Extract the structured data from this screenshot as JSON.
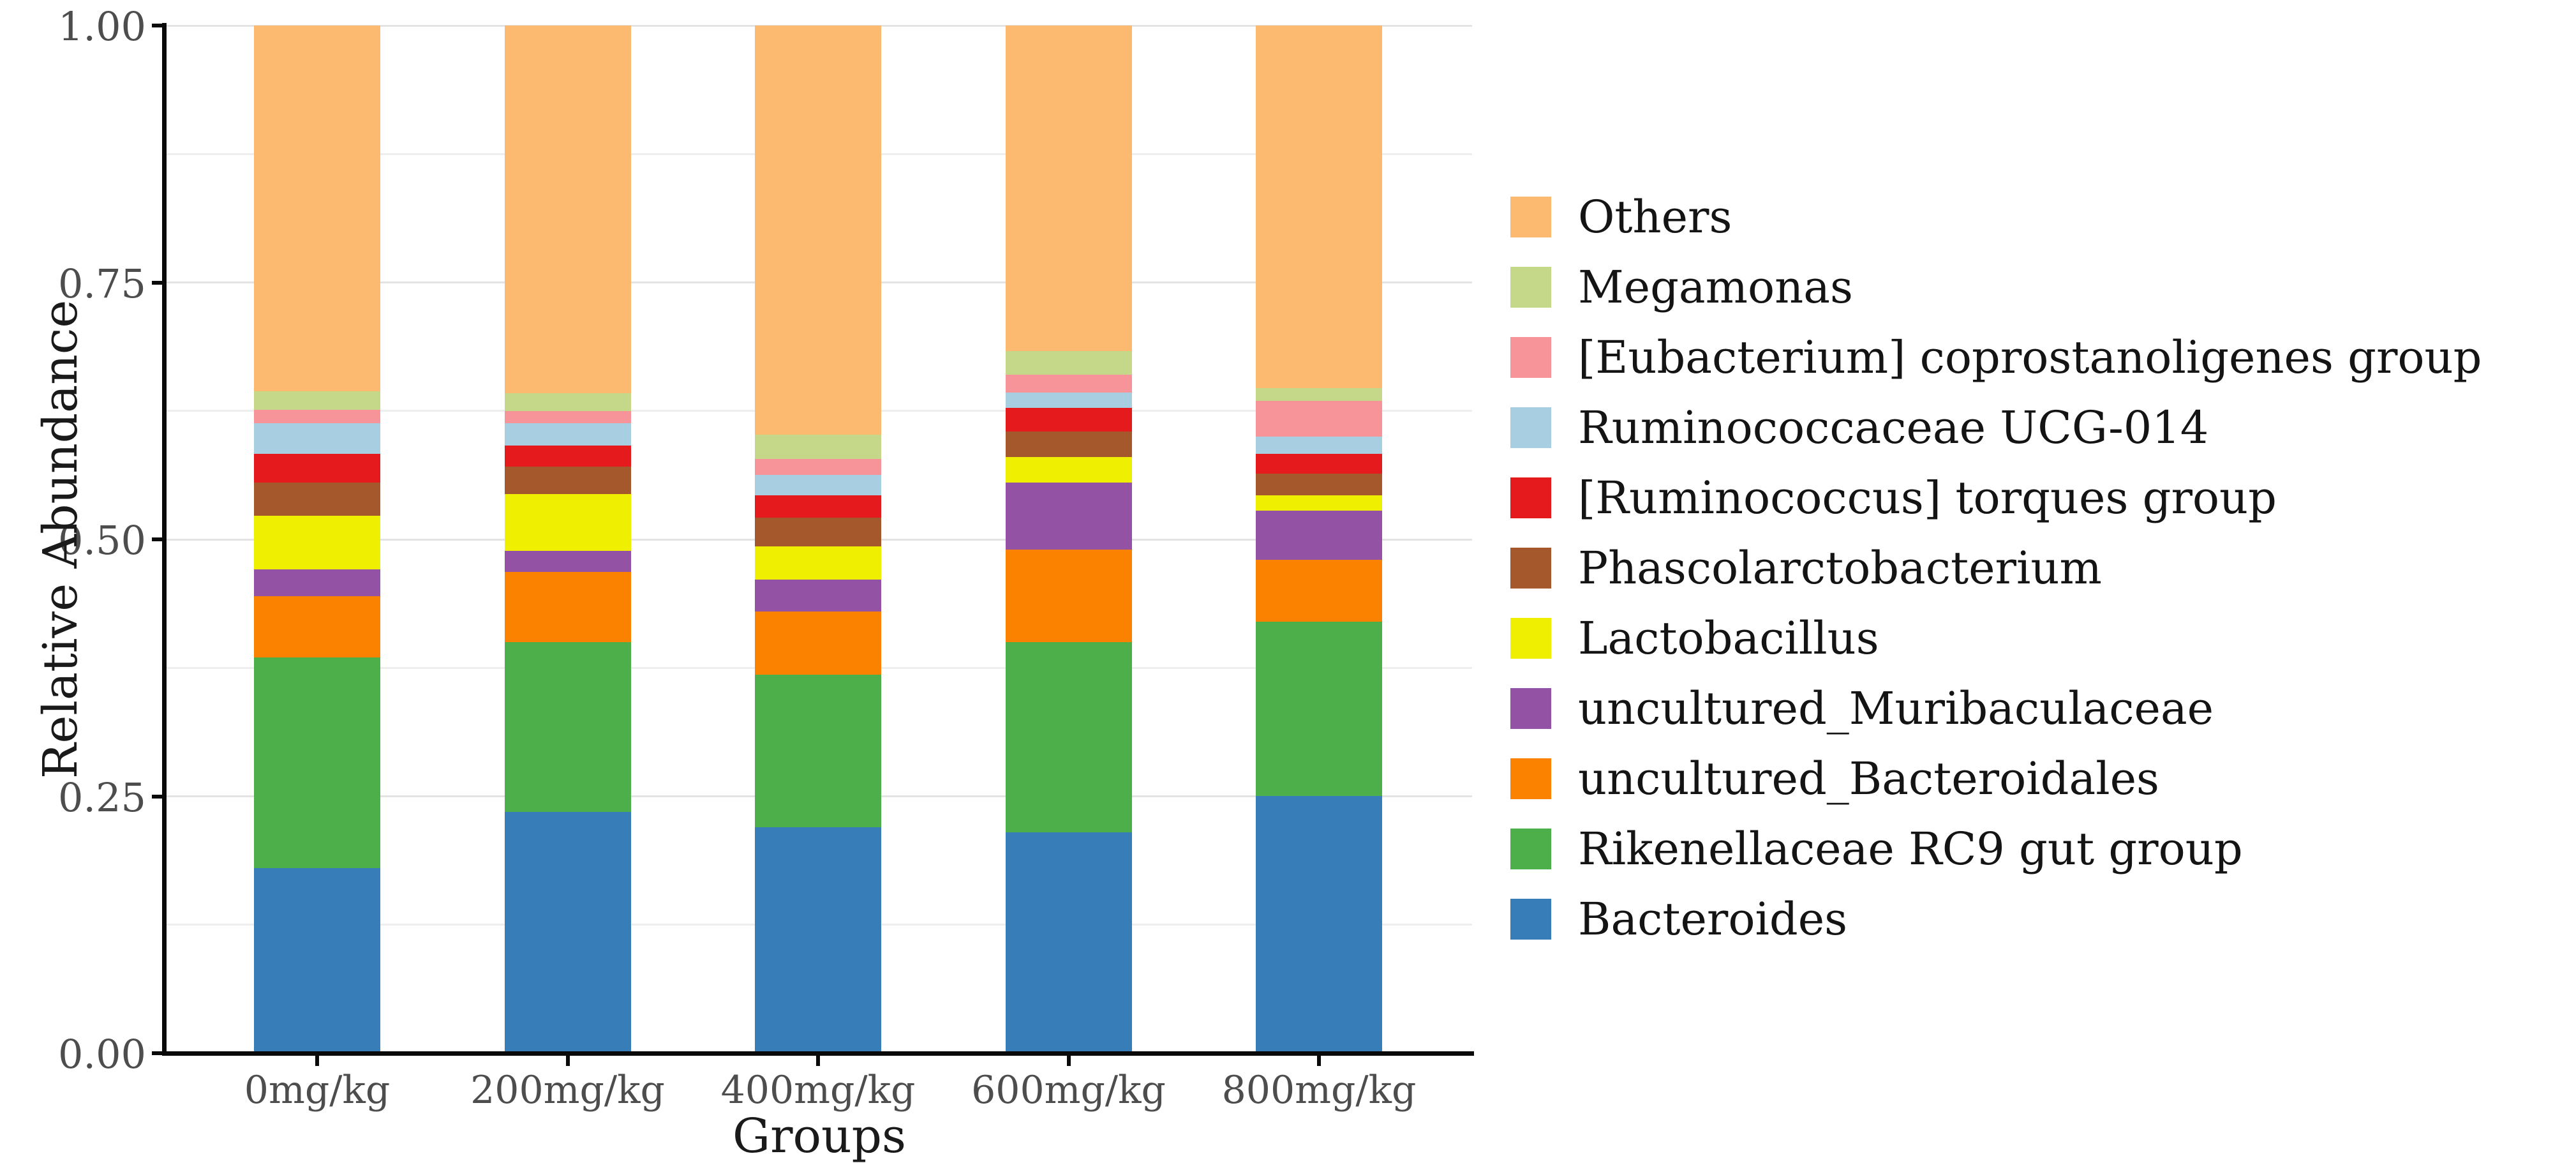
{
  "chart_data": {
    "type": "bar",
    "stacked": true,
    "title": "",
    "xlabel": "Groups",
    "ylabel": "Relative Abundance",
    "ylim": [
      0,
      1
    ],
    "ytick_values": [
      0,
      0.25,
      0.5,
      0.75,
      1
    ],
    "ytick_labels": [
      "0.00",
      "0.25",
      "0.50",
      "0.75",
      "1.00"
    ],
    "minor_grid_step": 0.125,
    "grid": "horizontal light-gray lines every 0.125, no vertical grid",
    "legend_position": "right",
    "legend_order_top_to_bottom": [
      "Others",
      "Megamonas",
      "[Eubacterium] coprostanoligenes group",
      "Ruminococcaceae UCG-014",
      "[Ruminococcus] torques group",
      "Phascolarctobacterium",
      "Lactobacillus",
      "uncultured_Muribaculaceae",
      "uncultured_Bacteroidales",
      "Rikenellaceae RC9 gut group",
      "Bacteroides"
    ],
    "categories": [
      "0mg/kg",
      "200mg/kg",
      "400mg/kg",
      "600mg/kg",
      "800mg/kg"
    ],
    "series": [
      {
        "name": "Bacteroides",
        "color": "#377EB8",
        "values": [
          0.18,
          0.235,
          0.22,
          0.215,
          0.25
        ]
      },
      {
        "name": "Rikenellaceae RC9 gut group",
        "color": "#4DAF4A",
        "values": [
          0.205,
          0.165,
          0.148,
          0.185,
          0.17
        ]
      },
      {
        "name": "uncultured_Bacteroidales",
        "color": "#FB8200",
        "values": [
          0.06,
          0.068,
          0.062,
          0.09,
          0.06
        ]
      },
      {
        "name": "uncultured_Muribaculaceae",
        "color": "#9452A5",
        "values": [
          0.026,
          0.021,
          0.031,
          0.065,
          0.048
        ]
      },
      {
        "name": "Lactobacillus",
        "color": "#EFEF02",
        "values": [
          0.052,
          0.055,
          0.032,
          0.025,
          0.015
        ]
      },
      {
        "name": "Phascolarctobacterium",
        "color": "#A5582C",
        "values": [
          0.032,
          0.027,
          0.028,
          0.025,
          0.021
        ]
      },
      {
        "name": "[Ruminococcus] torques group",
        "color": "#E41A1C",
        "values": [
          0.028,
          0.02,
          0.022,
          0.023,
          0.019
        ]
      },
      {
        "name": "Ruminococcaceae UCG-014",
        "color": "#A8CEE2",
        "values": [
          0.03,
          0.022,
          0.02,
          0.015,
          0.017
        ]
      },
      {
        "name": "[Eubacterium] coprostanoligenes group",
        "color": "#F6949A",
        "values": [
          0.013,
          0.012,
          0.015,
          0.017,
          0.035
        ]
      },
      {
        "name": "Megamonas",
        "color": "#C5D88A",
        "values": [
          0.018,
          0.017,
          0.024,
          0.023,
          0.012
        ]
      },
      {
        "name": "Others",
        "color": "#FBBA6F",
        "values": [
          0.356,
          0.358,
          0.398,
          0.317,
          0.353
        ]
      }
    ]
  }
}
